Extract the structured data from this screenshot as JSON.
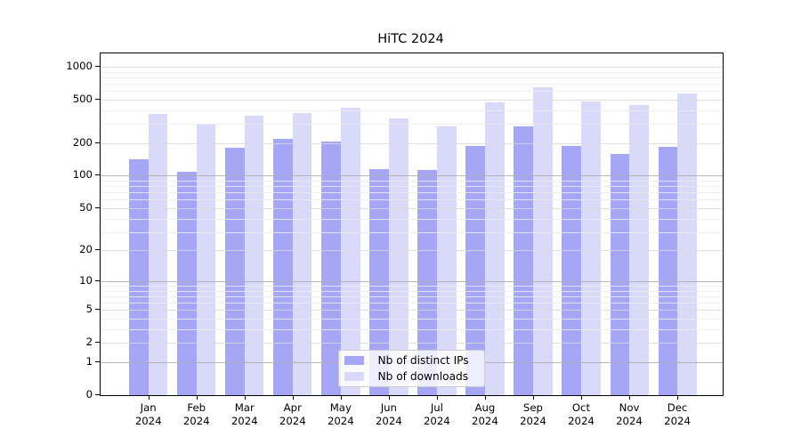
{
  "chart_data": {
    "type": "bar",
    "title": "HiTC 2024",
    "categories": [
      [
        "Jan",
        "2024"
      ],
      [
        "Feb",
        "2024"
      ],
      [
        "Mar",
        "2024"
      ],
      [
        "Apr",
        "2024"
      ],
      [
        "May",
        "2024"
      ],
      [
        "Jun",
        "2024"
      ],
      [
        "Jul",
        "2024"
      ],
      [
        "Aug",
        "2024"
      ],
      [
        "Sep",
        "2024"
      ],
      [
        "Oct",
        "2024"
      ],
      [
        "Nov",
        "2024"
      ],
      [
        "Dec",
        "2024"
      ]
    ],
    "series": [
      {
        "name": "Nb of distinct IPs",
        "color": "#a6a6f6",
        "values": [
          143,
          109,
          181,
          218,
          206,
          115,
          112,
          187,
          286,
          187,
          158,
          185
        ]
      },
      {
        "name": "Nb of downloads",
        "color": "#d9d9f9",
        "values": [
          370,
          301,
          353,
          376,
          422,
          335,
          283,
          470,
          648,
          480,
          446,
          568
        ]
      }
    ],
    "y_axis": {
      "scale": "log10(value+1)",
      "ticks": [
        0,
        1,
        2,
        5,
        10,
        20,
        50,
        100,
        200,
        500,
        1000
      ],
      "decade_gridlines": [
        1,
        10,
        100
      ],
      "minor_gridlines": [
        3,
        4,
        6,
        7,
        8,
        9,
        30,
        40,
        60,
        70,
        80,
        90,
        300,
        400,
        600,
        700,
        800,
        900
      ],
      "ylim": [
        0,
        1320
      ]
    },
    "legend_position": "lower center inside plot",
    "grid": true
  },
  "colors": {
    "decade_gridline": "#ababab",
    "major_gridline": "#d9d9d9",
    "minor_gridline": "#ececec",
    "spine": "#000000",
    "text": "#000000",
    "legend_border": "#cccccc"
  }
}
